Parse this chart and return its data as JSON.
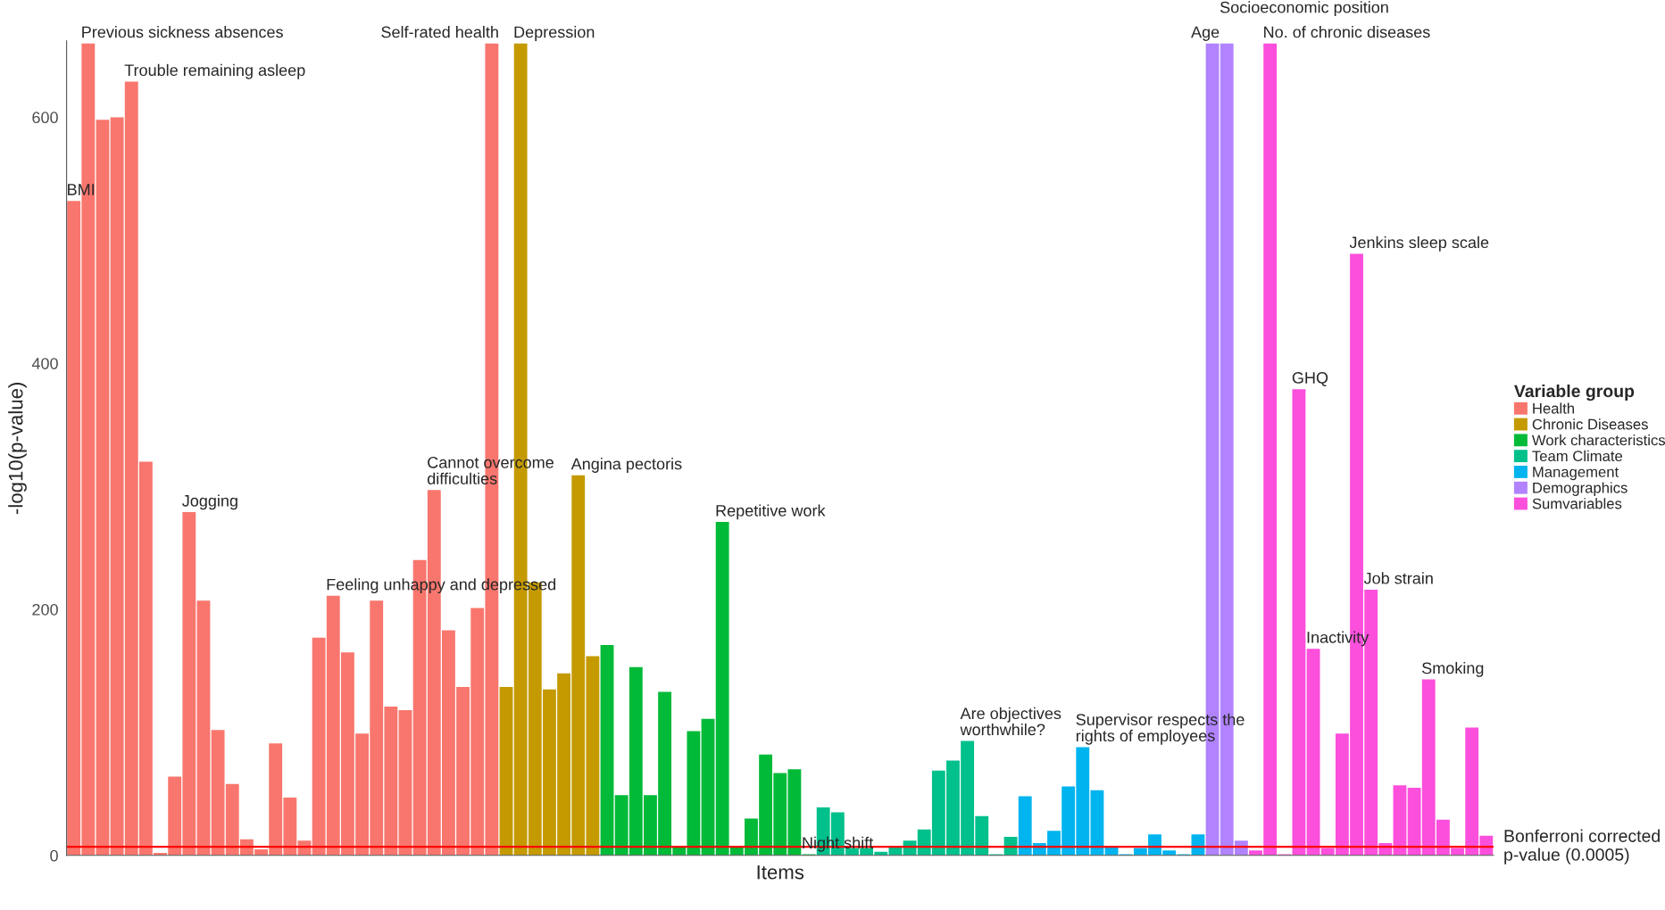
{
  "chart_data": {
    "type": "bar",
    "xlabel": "Items",
    "ylabel": "-log10(p-value)",
    "legend_title": "Variable group",
    "legend": "right",
    "grid": false,
    "ylim": [
      0,
      662
    ],
    "yticks": [
      0,
      200,
      400,
      600
    ],
    "categories": [
      null,
      null,
      null,
      null,
      null,
      null,
      null,
      null,
      null,
      null,
      null,
      null,
      null,
      null,
      null,
      null,
      null,
      null,
      null,
      null,
      null,
      null,
      null,
      null,
      null,
      null,
      null,
      null,
      null,
      null,
      null,
      null,
      null,
      null,
      null,
      null,
      null,
      null,
      null,
      null,
      null,
      null,
      null,
      null,
      null,
      null,
      null,
      null,
      null,
      null,
      null,
      null,
      null,
      null,
      null,
      null,
      null,
      null,
      null,
      null,
      null,
      null,
      null,
      null,
      null,
      null,
      null,
      null,
      null,
      null,
      null,
      null,
      null,
      null,
      null,
      null,
      null,
      null,
      null,
      null,
      null,
      null,
      null,
      null,
      null,
      null,
      null,
      null,
      null,
      null,
      null,
      null,
      null,
      null,
      null,
      null,
      null,
      null,
      null
    ],
    "series": [
      {
        "name": "Health",
        "color": "#F8766D",
        "values": [
          532,
          660,
          598,
          600,
          629,
          320,
          2,
          64,
          279,
          207,
          102,
          58,
          13,
          5,
          91,
          47,
          12,
          177,
          211,
          165,
          99,
          207,
          121,
          118,
          240,
          297,
          183,
          137,
          201,
          660,
          null,
          null,
          null,
          null,
          null,
          null,
          null,
          null,
          null,
          null,
          null,
          null,
          null,
          null,
          null,
          null,
          null,
          null,
          null,
          null,
          null,
          null,
          null,
          null,
          null,
          null,
          null,
          null,
          null,
          null,
          null,
          null,
          null,
          null,
          null,
          null,
          null,
          null,
          null,
          null,
          null,
          null,
          null,
          null,
          null,
          null,
          null,
          null,
          null,
          null,
          null,
          null,
          null,
          null,
          null,
          null,
          null,
          null,
          null,
          null,
          null,
          null,
          null,
          null,
          null,
          null,
          null,
          null,
          null
        ]
      },
      {
        "name": "Chronic Diseases",
        "color": "#C49A00",
        "values": [
          null,
          null,
          null,
          null,
          null,
          null,
          null,
          null,
          null,
          null,
          null,
          null,
          null,
          null,
          null,
          null,
          null,
          null,
          null,
          null,
          null,
          null,
          null,
          null,
          null,
          null,
          null,
          null,
          null,
          null,
          137,
          660,
          222,
          135,
          148,
          309,
          162,
          null,
          null,
          null,
          null,
          null,
          null,
          null,
          null,
          null,
          null,
          null,
          null,
          null,
          null,
          null,
          null,
          null,
          null,
          null,
          null,
          null,
          null,
          null,
          null,
          null,
          null,
          null,
          null,
          null,
          null,
          null,
          null,
          null,
          null,
          null,
          null,
          null,
          null,
          null,
          null,
          null,
          null,
          null,
          null,
          null,
          null,
          null,
          null,
          null,
          null,
          null,
          null,
          null,
          null,
          null,
          null,
          null,
          null,
          null,
          null,
          null,
          null
        ]
      },
      {
        "name": "Work characteristics",
        "color": "#00BA38",
        "values": [
          null,
          null,
          null,
          null,
          null,
          null,
          null,
          null,
          null,
          null,
          null,
          null,
          null,
          null,
          null,
          null,
          null,
          null,
          null,
          null,
          null,
          null,
          null,
          null,
          null,
          null,
          null,
          null,
          null,
          null,
          null,
          null,
          null,
          null,
          null,
          null,
          null,
          171,
          49,
          153,
          49,
          133,
          7,
          101,
          111,
          271,
          7,
          30,
          82,
          67,
          70,
          1,
          null,
          null,
          null,
          null,
          null,
          null,
          null,
          null,
          null,
          null,
          null,
          null,
          null,
          null,
          null,
          null,
          null,
          null,
          null,
          null,
          null,
          null,
          null,
          null,
          null,
          null,
          null,
          null,
          null,
          null,
          null,
          null,
          null,
          null,
          null,
          null,
          null,
          null,
          null,
          null,
          null,
          null,
          null,
          null,
          null,
          null,
          null
        ]
      },
      {
        "name": "Team Climate",
        "color": "#00C08B",
        "values": [
          null,
          null,
          null,
          null,
          null,
          null,
          null,
          null,
          null,
          null,
          null,
          null,
          null,
          null,
          null,
          null,
          null,
          null,
          null,
          null,
          null,
          null,
          null,
          null,
          null,
          null,
          null,
          null,
          null,
          null,
          null,
          null,
          null,
          null,
          null,
          null,
          null,
          null,
          null,
          null,
          null,
          null,
          null,
          null,
          null,
          null,
          null,
          null,
          null,
          null,
          null,
          null,
          39,
          35,
          6,
          6,
          3,
          7,
          12,
          21,
          69,
          77,
          93,
          32,
          1,
          15,
          null,
          null,
          null,
          null,
          null,
          null,
          null,
          null,
          null,
          null,
          null,
          null,
          null,
          null,
          null,
          null,
          null,
          null,
          null,
          null,
          null,
          null,
          null,
          null,
          null,
          null,
          null,
          null,
          null,
          null,
          null,
          null,
          null
        ]
      },
      {
        "name": "Management",
        "color": "#00B4EF",
        "values": [
          null,
          null,
          null,
          null,
          null,
          null,
          null,
          null,
          null,
          null,
          null,
          null,
          null,
          null,
          null,
          null,
          null,
          null,
          null,
          null,
          null,
          null,
          null,
          null,
          null,
          null,
          null,
          null,
          null,
          null,
          null,
          null,
          null,
          null,
          null,
          null,
          null,
          null,
          null,
          null,
          null,
          null,
          null,
          null,
          null,
          null,
          null,
          null,
          null,
          null,
          null,
          null,
          null,
          null,
          null,
          null,
          null,
          null,
          null,
          null,
          null,
          null,
          null,
          null,
          null,
          null,
          48,
          10,
          20,
          56,
          88,
          53,
          7,
          1,
          6,
          17,
          4,
          1,
          17,
          null,
          null,
          null,
          null,
          null,
          null,
          null,
          null,
          null,
          null,
          null,
          null,
          null,
          null,
          null,
          null,
          null,
          null,
          null,
          null
        ]
      },
      {
        "name": "Demographics",
        "color": "#B183FF",
        "values": [
          null,
          null,
          null,
          null,
          null,
          null,
          null,
          null,
          null,
          null,
          null,
          null,
          null,
          null,
          null,
          null,
          null,
          null,
          null,
          null,
          null,
          null,
          null,
          null,
          null,
          null,
          null,
          null,
          null,
          null,
          null,
          null,
          null,
          null,
          null,
          null,
          null,
          null,
          null,
          null,
          null,
          null,
          null,
          null,
          null,
          null,
          null,
          null,
          null,
          null,
          null,
          null,
          null,
          null,
          null,
          null,
          null,
          null,
          null,
          null,
          null,
          null,
          null,
          null,
          null,
          null,
          null,
          null,
          null,
          null,
          null,
          null,
          null,
          null,
          null,
          null,
          null,
          null,
          null,
          660,
          660,
          12,
          null,
          null,
          null,
          null,
          null,
          null,
          null,
          null,
          null,
          null,
          null,
          null,
          null,
          null,
          null,
          null,
          null
        ]
      },
      {
        "name": "Sumvariables",
        "color": "#FB4FDC",
        "values": [
          null,
          null,
          null,
          null,
          null,
          null,
          null,
          null,
          null,
          null,
          null,
          null,
          null,
          null,
          null,
          null,
          null,
          null,
          null,
          null,
          null,
          null,
          null,
          null,
          null,
          null,
          null,
          null,
          null,
          null,
          null,
          null,
          null,
          null,
          null,
          null,
          null,
          null,
          null,
          null,
          null,
          null,
          null,
          null,
          null,
          null,
          null,
          null,
          null,
          null,
          null,
          null,
          null,
          null,
          null,
          null,
          null,
          null,
          null,
          null,
          null,
          null,
          null,
          null,
          null,
          null,
          null,
          null,
          null,
          null,
          null,
          null,
          null,
          null,
          null,
          null,
          null,
          null,
          null,
          null,
          null,
          null,
          4,
          660,
          1,
          379,
          168,
          6,
          99,
          489,
          216,
          10,
          57,
          55,
          143,
          29,
          6,
          104,
          16
        ]
      }
    ],
    "value_labels": [
      "BMI",
      "Previous sickness absences",
      null,
      null,
      "Trouble remaining asleep",
      null,
      null,
      null,
      "Jogging",
      null,
      null,
      null,
      null,
      null,
      null,
      null,
      null,
      null,
      "Feeling unhappy and depressed",
      null,
      null,
      null,
      null,
      null,
      null,
      "Cannot overcome\ndifficulties",
      null,
      null,
      null,
      "Self-rated health",
      null,
      "Depression",
      null,
      null,
      null,
      "Angina pectoris",
      null,
      null,
      null,
      null,
      null,
      null,
      null,
      null,
      null,
      "Repetitive work",
      null,
      null,
      null,
      null,
      null,
      "Night shift",
      null,
      null,
      null,
      null,
      null,
      null,
      null,
      null,
      null,
      null,
      "Are objectives\nworthwhile?",
      null,
      null,
      null,
      null,
      null,
      null,
      null,
      "Supervisor respects the\nrights of employees",
      null,
      null,
      null,
      null,
      null,
      null,
      null,
      null,
      "Age",
      "Socioeconomic position",
      null,
      null,
      "No. of chronic diseases",
      null,
      "GHQ",
      "Inactivity",
      null,
      null,
      "Jenkins sleep scale",
      "Job strain",
      null,
      null,
      null,
      "Smoking",
      null,
      null,
      null,
      null
    ],
    "ref_lines": [
      {
        "axis": "y",
        "value": 7,
        "label": "Bonferroni corrected\np-value (0.0005)",
        "color": "#FF0000"
      }
    ]
  }
}
